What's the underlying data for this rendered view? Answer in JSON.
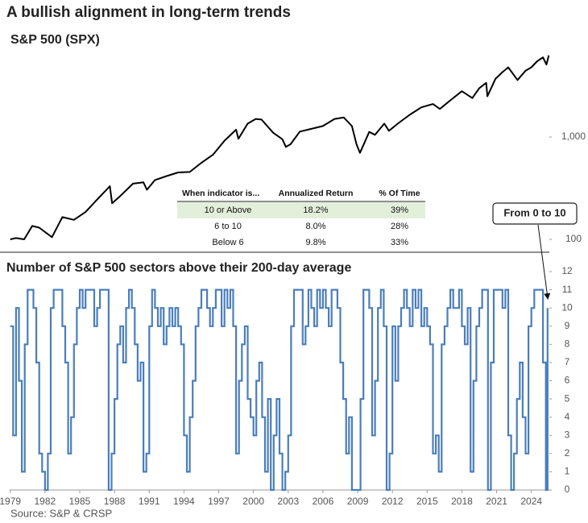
{
  "chart_data": [
    {
      "type": "line",
      "title": "A bullish alignment in long-term trends",
      "subtitle": "S&P 500 (SPX)",
      "log_scale": true,
      "color": "#000000",
      "x": [
        1979,
        1979.5,
        1980.2,
        1980.9,
        1981.5,
        1982.6,
        1983.5,
        1984.5,
        1985.5,
        1986.5,
        1987.6,
        1987.8,
        1988.5,
        1989.6,
        1990.5,
        1990.8,
        1991.5,
        1992.5,
        1993.5,
        1994.5,
        1995.5,
        1996.5,
        1997.5,
        1998.5,
        1998.7,
        1999.5,
        2000.2,
        2000.7,
        2001.7,
        2002.5,
        2002.8,
        2003.2,
        2004,
        2005,
        2006,
        2007,
        2007.8,
        2008.5,
        2008.9,
        2009.2,
        2010,
        2010.5,
        2011.3,
        2011.7,
        2012.5,
        2013.5,
        2014.5,
        2015.5,
        2016.1,
        2017,
        2018,
        2018.9,
        2019.5,
        2020.1,
        2020.2,
        2020.9,
        2021.5,
        2022,
        2022.8,
        2023.5,
        2024,
        2024.5,
        2025,
        2025.3,
        2025.5
      ],
      "values": [
        100,
        103,
        100,
        135,
        130,
        105,
        165,
        155,
        185,
        245,
        330,
        225,
        265,
        350,
        360,
        305,
        380,
        415,
        450,
        455,
        560,
        670,
        920,
        1180,
        960,
        1350,
        1500,
        1480,
        1100,
        950,
        800,
        850,
        1130,
        1200,
        1280,
        1500,
        1550,
        1280,
        850,
        700,
        1120,
        1050,
        1350,
        1150,
        1360,
        1650,
        1950,
        2100,
        1880,
        2280,
        2800,
        2400,
        3000,
        3380,
        2500,
        3700,
        4300,
        4790,
        3600,
        4450,
        4800,
        5500,
        6000,
        5100,
        6280
      ],
      "xlim": [
        1978.95,
        2025.55
      ],
      "ylim": [
        80,
        10000
      ],
      "yticks": [
        100,
        {
          "value": 1000,
          "label": "1,000"
        }
      ],
      "table": {
        "header": [
          "When indicator is...",
          "Annualized Return",
          "% Of Time"
        ],
        "rows": [
          [
            "10 or Above",
            "18.2%",
            "39%"
          ],
          [
            "6 to 10",
            "8.0%",
            "28%"
          ],
          [
            "Below 6",
            "9.8%",
            "33%"
          ]
        ]
      },
      "annotation": "From 0 to 10"
    },
    {
      "type": "step",
      "title": "Number of S&P 500 sectors above their 200-day average",
      "color": "#4a7ebb",
      "x": [
        1979,
        1979.25,
        1979.5,
        1979.75,
        1980,
        1980.25,
        1980.5,
        1980.75,
        1981,
        1981.25,
        1981.5,
        1981.75,
        1982,
        1982.25,
        1982.5,
        1982.75,
        1983,
        1983.25,
        1983.5,
        1983.75,
        1984,
        1984.25,
        1984.5,
        1984.75,
        1985,
        1985.25,
        1985.5,
        1985.75,
        1986,
        1986.25,
        1986.5,
        1986.75,
        1987,
        1987.25,
        1987.5,
        1987.75,
        1988,
        1988.25,
        1988.5,
        1988.75,
        1989,
        1989.25,
        1989.5,
        1989.75,
        1990,
        1990.25,
        1990.5,
        1990.75,
        1991,
        1991.25,
        1991.5,
        1991.75,
        1992,
        1992.25,
        1992.5,
        1992.75,
        1993,
        1993.25,
        1993.5,
        1993.75,
        1994,
        1994.25,
        1994.5,
        1994.75,
        1995,
        1995.25,
        1995.5,
        1995.75,
        1996,
        1996.25,
        1996.5,
        1996.75,
        1997,
        1997.25,
        1997.5,
        1997.75,
        1998,
        1998.25,
        1998.5,
        1998.75,
        1999,
        1999.25,
        1999.5,
        1999.75,
        2000,
        2000.25,
        2000.5,
        2000.75,
        2001,
        2001.25,
        2001.5,
        2001.75,
        2002,
        2002.25,
        2002.5,
        2002.75,
        2003,
        2003.25,
        2003.5,
        2003.75,
        2004,
        2004.25,
        2004.5,
        2004.75,
        2005,
        2005.25,
        2005.5,
        2005.75,
        2006,
        2006.25,
        2006.5,
        2006.75,
        2007,
        2007.25,
        2007.5,
        2007.75,
        2008,
        2008.25,
        2008.5,
        2008.75,
        2009,
        2009.25,
        2009.5,
        2009.75,
        2010,
        2010.25,
        2010.5,
        2010.75,
        2011,
        2011.25,
        2011.5,
        2011.75,
        2012,
        2012.25,
        2012.5,
        2012.75,
        2013,
        2013.25,
        2013.5,
        2013.75,
        2014,
        2014.25,
        2014.5,
        2014.75,
        2015,
        2015.25,
        2015.5,
        2015.75,
        2016,
        2016.25,
        2016.5,
        2016.75,
        2017,
        2017.25,
        2017.5,
        2017.75,
        2018,
        2018.25,
        2018.5,
        2018.75,
        2019,
        2019.25,
        2019.5,
        2019.75,
        2020,
        2020.25,
        2020.5,
        2020.75,
        2021,
        2021.25,
        2021.5,
        2021.75,
        2022,
        2022.25,
        2022.5,
        2022.75,
        2023,
        2023.25,
        2023.5,
        2023.75,
        2024,
        2024.25,
        2024.5,
        2024.75,
        2025,
        2025.25,
        2025.4
      ],
      "values": [
        9,
        3,
        10,
        6,
        1,
        8,
        11,
        11,
        10,
        7,
        2,
        1,
        0,
        2,
        10,
        11,
        11,
        11,
        9,
        7,
        2,
        4,
        8,
        10,
        11,
        10,
        11,
        11,
        11,
        9,
        10,
        11,
        11,
        11,
        0,
        2,
        5,
        8,
        9,
        7,
        10,
        11,
        10,
        8,
        6,
        7,
        1,
        2,
        9,
        11,
        10,
        9,
        10,
        8,
        9,
        10,
        9,
        10,
        9,
        8,
        3,
        1,
        4,
        6,
        9,
        10,
        11,
        11,
        10,
        9,
        10,
        11,
        11,
        9,
        11,
        10,
        11,
        9,
        2,
        6,
        8,
        9,
        5,
        4,
        3,
        6,
        7,
        4,
        1,
        5,
        0,
        3,
        5,
        2,
        0,
        1,
        3,
        9,
        11,
        11,
        11,
        8,
        9,
        11,
        10,
        9,
        11,
        10,
        11,
        10,
        9,
        11,
        11,
        10,
        7,
        5,
        2,
        4,
        0,
        0,
        0,
        5,
        11,
        11,
        10,
        3,
        6,
        10,
        11,
        9,
        0,
        2,
        9,
        6,
        9,
        10,
        11,
        10,
        9,
        11,
        10,
        11,
        9,
        10,
        9,
        8,
        2,
        3,
        1,
        8,
        9,
        10,
        11,
        10,
        10,
        11,
        9,
        8,
        10,
        1,
        6,
        9,
        10,
        11,
        11,
        0,
        7,
        11,
        11,
        11,
        10,
        11,
        3,
        0,
        2,
        5,
        7,
        4,
        2,
        9,
        10,
        11,
        11,
        11,
        7,
        0,
        10
      ],
      "xlim": [
        1978.95,
        2025.55
      ],
      "ylim": [
        0,
        12
      ],
      "xticks": [
        1979,
        1982,
        1985,
        1988,
        1991,
        1994,
        1997,
        2000,
        2003,
        2006,
        2009,
        2012,
        2015,
        2018,
        2021,
        2024
      ],
      "yticks": [
        0,
        1,
        2,
        3,
        4,
        5,
        6,
        7,
        8,
        9,
        10,
        11,
        12
      ],
      "source": "Source: S&P & CRSP"
    }
  ]
}
